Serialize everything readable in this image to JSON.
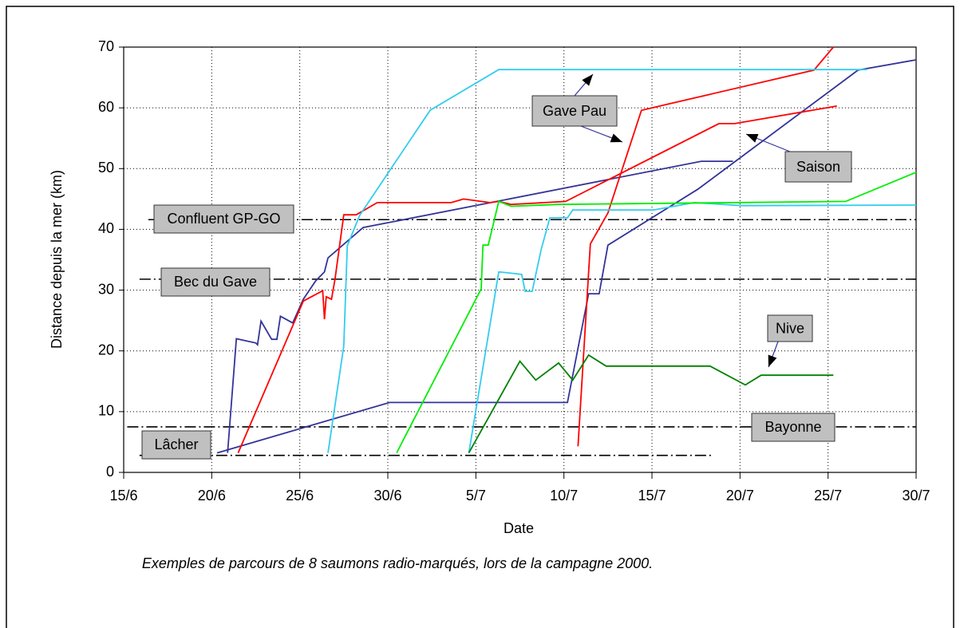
{
  "chart_data": {
    "type": "line",
    "xlabel": "Date",
    "ylabel": "Distance depuis la mer (km)",
    "caption": "Exemples de parcours de 8 saumons radio-marqués, lors de la campagne 2000.",
    "xlim": [
      15,
      60
    ],
    "ylim": [
      0,
      70
    ],
    "xticks": [
      {
        "value": 15,
        "label": "15/6"
      },
      {
        "value": 20,
        "label": "20/6"
      },
      {
        "value": 25,
        "label": "25/6"
      },
      {
        "value": 30,
        "label": "30/6"
      },
      {
        "value": 35,
        "label": "5/7"
      },
      {
        "value": 40,
        "label": "10/7"
      },
      {
        "value": 45,
        "label": "15/7"
      },
      {
        "value": 50,
        "label": "20/7"
      },
      {
        "value": 55,
        "label": "25/7"
      },
      {
        "value": 60,
        "label": "30/7"
      }
    ],
    "yticks": [
      0,
      10,
      20,
      30,
      40,
      50,
      60,
      70
    ],
    "grid": true,
    "series": [
      {
        "color": "#333399",
        "x": [
          20.9,
          21.4,
          22.5,
          22.6,
          22.8,
          23.4,
          23.7,
          23.9,
          24.6,
          25.2,
          25.9,
          26.4,
          26.6,
          28.6,
          30.2,
          47.8,
          49.6
        ],
        "values": [
          3.2,
          22,
          21.3,
          21,
          24.9,
          21.9,
          21.9,
          25.7,
          24.6,
          28.5,
          31.5,
          33,
          35.3,
          40.3,
          41.2,
          51.2,
          51.2
        ]
      },
      {
        "color": "#333399",
        "x": [
          20.3,
          30.1,
          40.2,
          41.4,
          42,
          42.5,
          47.6,
          56.7,
          60
        ],
        "values": [
          3.2,
          11.5,
          11.5,
          29.4,
          29.4,
          37.4,
          46.6,
          66.2,
          67.9
        ]
      },
      {
        "color": "#ff0000",
        "x": [
          21.5,
          25.2,
          26.3,
          26.4,
          26.5,
          26.8,
          27,
          27.5,
          28.2,
          29.4,
          33.6,
          34.3,
          35.8,
          36.3,
          37,
          40.1,
          48.8,
          49.7,
          55.5
        ],
        "values": [
          3.2,
          28.2,
          29.9,
          25.2,
          28.9,
          28.5,
          31.8,
          42.4,
          42.4,
          44.4,
          44.4,
          45,
          44.4,
          44.6,
          44.1,
          44.6,
          57.4,
          57.4,
          60.3
        ]
      },
      {
        "color": "#ff0000",
        "x": [
          40.8,
          41.5,
          42.5,
          44.4,
          54.2,
          55.3
        ],
        "values": [
          4.3,
          37.6,
          42.7,
          59.6,
          66.2,
          70
        ]
      },
      {
        "color": "#33ccee",
        "x": [
          26.6,
          27.5,
          27.7,
          28.4,
          32.4,
          36.3,
          57.2
        ],
        "values": [
          3.2,
          20.8,
          37.3,
          42.3,
          59.6,
          66.3,
          66.3
        ]
      },
      {
        "color": "#33ccee",
        "x": [
          34.6,
          36.3,
          37.6,
          37.8,
          38.2,
          38.7,
          39.2,
          40.2,
          40.5,
          45.1,
          47.4,
          50.1,
          60
        ],
        "values": [
          3.2,
          33,
          32.6,
          29.8,
          29.8,
          36.6,
          41.9,
          41.9,
          43.2,
          43.2,
          44.4,
          43.9,
          44
        ]
      },
      {
        "color": "#00ee00",
        "x": [
          30.5,
          35.3,
          35.4,
          35.7,
          36.3,
          37,
          39.7,
          56,
          60
        ],
        "values": [
          3.2,
          30.2,
          37.4,
          37.4,
          44.6,
          43.8,
          44.1,
          44.6,
          49.4
        ]
      },
      {
        "color": "#008000",
        "x": [
          34.6,
          37.5,
          38.4,
          39.7,
          40.5,
          41.4,
          42.4,
          48.3,
          50.3,
          51.2,
          55.3
        ],
        "values": [
          3.2,
          18.3,
          15.2,
          18,
          15.2,
          19.3,
          17.5,
          17.5,
          14.4,
          16,
          16
        ]
      }
    ],
    "reference_lines": [
      {
        "label": "Lâcher",
        "value": 2.8,
        "xrange": [
          15.9,
          48.5
        ]
      },
      {
        "label": "Bayonne",
        "value": 7.5,
        "xrange": [
          15.2,
          60
        ]
      },
      {
        "label": "Bec du Gave",
        "value": 31.8,
        "xrange": [
          15.9,
          60
        ]
      },
      {
        "label": "Confluent GP-GO",
        "value": 41.6,
        "xrange": [
          16.4,
          60
        ]
      }
    ],
    "annotations": [
      "Gave Pau",
      "Saison",
      "Nive"
    ]
  }
}
